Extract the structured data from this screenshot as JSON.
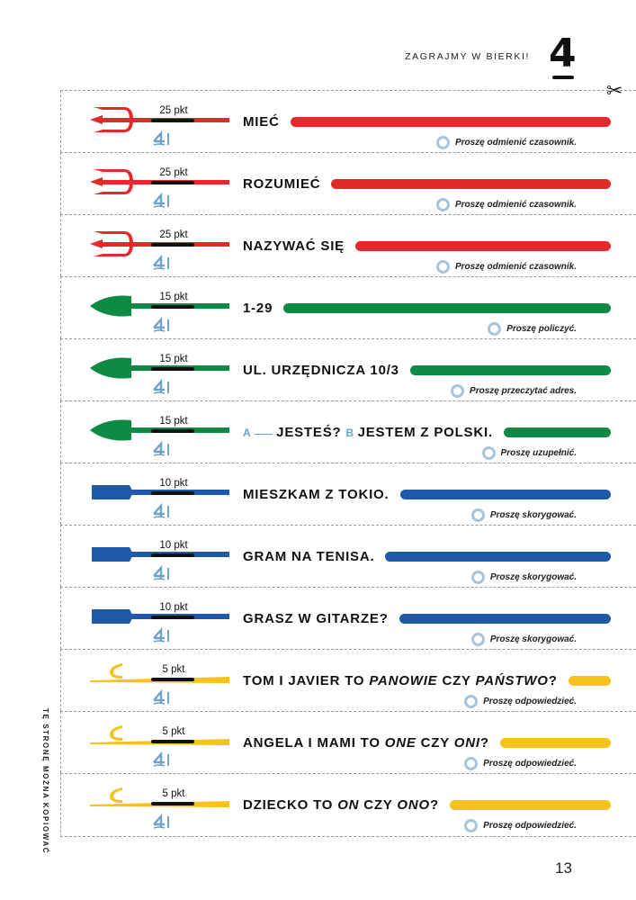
{
  "header": {
    "title": "ZAGRAJMY W BIERKI!",
    "chapter": "4"
  },
  "side_note": "TĘ STRONĘ MOŻNA KOPIOWAĆ",
  "page_number": "13",
  "colors": {
    "red": "#e12a29",
    "green": "#0e8a44",
    "blue": "#1f5aa8",
    "yellow": "#f7c21a"
  },
  "cards": [
    {
      "weapon": "trident",
      "color": "red",
      "points": "25 pkt",
      "parts": {
        "pre": "MIEĆ"
      },
      "instruction": "Proszę odmienić czasownik."
    },
    {
      "weapon": "trident",
      "color": "red",
      "points": "25 pkt",
      "parts": {
        "pre": "ROZUMIEĆ"
      },
      "instruction": "Proszę odmienić czasownik."
    },
    {
      "weapon": "trident",
      "color": "red",
      "points": "25 pkt",
      "parts": {
        "pre": "NAZYWAĆ SIĘ"
      },
      "instruction": "Proszę odmienić czasownik."
    },
    {
      "weapon": "spear",
      "color": "green",
      "points": "15 pkt",
      "parts": {
        "pre": "1-29"
      },
      "instruction": "Proszę policzyć."
    },
    {
      "weapon": "spear",
      "color": "green",
      "points": "15 pkt",
      "parts": {
        "pre": "UL. URZĘDNICZA 10/3"
      },
      "instruction": "Proszę przeczytać adres."
    },
    {
      "weapon": "spear",
      "color": "green",
      "points": "15 pkt",
      "parts": {
        "a": "A",
        "pre": "JESTEŚ?",
        "b": "B",
        "post": "JESTEM Z POLSKI."
      },
      "instruction": "Proszę uzupełnić."
    },
    {
      "weapon": "paddle",
      "color": "blue",
      "points": "10 pkt",
      "parts": {
        "pre": "MIESZKAM Z TOKIO."
      },
      "instruction": "Proszę skorygować."
    },
    {
      "weapon": "paddle",
      "color": "blue",
      "points": "10 pkt",
      "parts": {
        "pre": "GRAM NA TENISA."
      },
      "instruction": "Proszę skorygować."
    },
    {
      "weapon": "paddle",
      "color": "blue",
      "points": "10 pkt",
      "parts": {
        "pre": "GRASZ W GITARZE?"
      },
      "instruction": "Proszę skorygować."
    },
    {
      "weapon": "hook",
      "color": "yellow",
      "points": "5 pkt",
      "parts": {
        "pre": "TOM I JAVIER TO ",
        "i1": "PANOWIE",
        "mid": " CZY ",
        "i2": "PAŃSTWO",
        "post": "?"
      },
      "instruction": "Proszę odpowiedzieć."
    },
    {
      "weapon": "hook",
      "color": "yellow",
      "points": "5 pkt",
      "parts": {
        "pre": "ANGELA I MAMI TO ",
        "i1": "ONE",
        "mid": " CZY ",
        "i2": "ONI",
        "post": "?"
      },
      "instruction": "Proszę odpowiedzieć."
    },
    {
      "weapon": "hook",
      "color": "yellow",
      "points": "5 pkt",
      "parts": {
        "pre": "DZIECKO TO ",
        "i1": "ON",
        "mid": " CZY ",
        "i2": "ONO",
        "post": "?"
      },
      "instruction": "Proszę odpowiedzieć."
    }
  ]
}
